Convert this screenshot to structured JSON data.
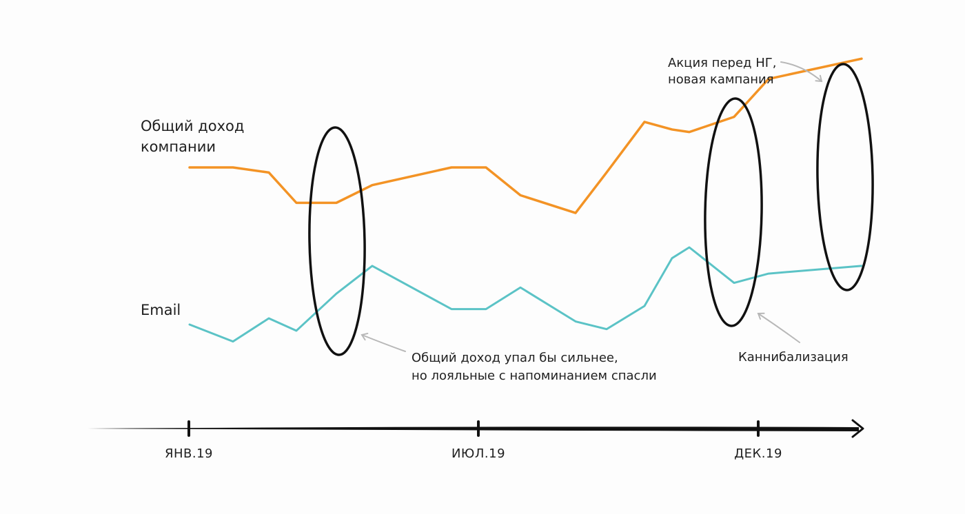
{
  "chart_data": {
    "type": "line",
    "x_ticks": [
      "ЯНВ.19",
      "ИЮЛ.19",
      "ДЕК.19"
    ],
    "series": [
      {
        "name": "Общий доход компании",
        "name_lines": [
          "Общий доход",
          "компании"
        ],
        "color": "#f39325",
        "x": [
          0,
          1,
          2,
          3,
          4,
          5,
          6,
          7,
          8,
          9,
          10,
          11,
          12,
          13,
          14,
          15,
          16
        ],
        "values": [
          0.0,
          0.0,
          -0.2,
          -1.4,
          -1.4,
          -0.7,
          0.0,
          0.0,
          -1.1,
          -1.8,
          -0.2,
          1.8,
          1.5,
          1.4,
          2.0,
          3.5,
          4.3
        ]
      },
      {
        "name": "Email",
        "name_lines": [
          "Email"
        ],
        "color": "#5bc3c6",
        "x": [
          0,
          1,
          2,
          3,
          4,
          5,
          6,
          7,
          8,
          9,
          10,
          11,
          12,
          13,
          14,
          15,
          16
        ],
        "values": [
          0.0,
          -1.1,
          0.4,
          -0.4,
          2.0,
          3.8,
          1.0,
          1.0,
          2.4,
          0.2,
          -0.3,
          1.2,
          4.3,
          5.0,
          2.7,
          3.3,
          3.8
        ]
      }
    ],
    "annotations": [
      {
        "lines": [
          "Общий доход упал бы сильнее,",
          "но лояльные с напоминанием спасли"
        ]
      },
      {
        "lines": [
          "Каннибализация"
        ]
      },
      {
        "lines": [
          "Акция перед НГ,",
          "новая кампания"
        ]
      }
    ]
  }
}
